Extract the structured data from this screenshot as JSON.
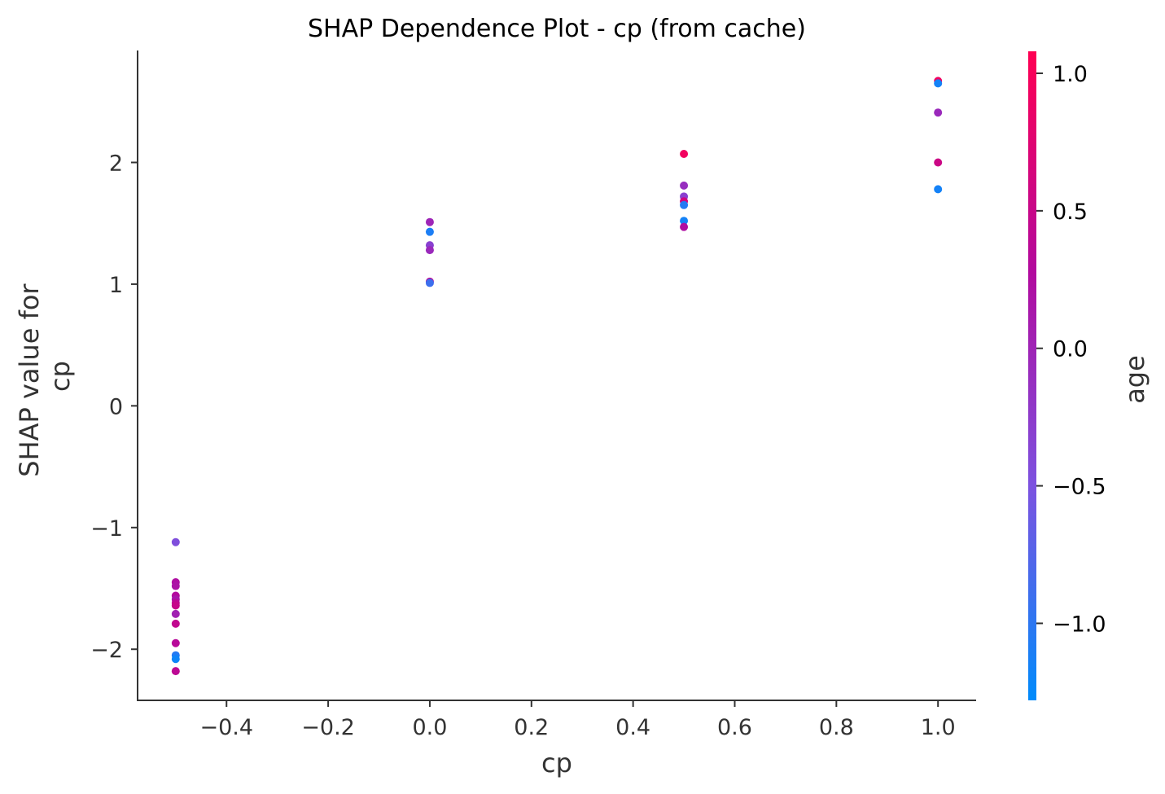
{
  "chart_data": {
    "type": "scatter",
    "title": "SHAP Dependence Plot - cp (from cache)",
    "xlabel": "cp",
    "ylabel_lines": [
      "SHAP value for",
      "cp"
    ],
    "xlim": [
      -0.575,
      1.075
    ],
    "ylim": [
      -2.42,
      2.92
    ],
    "x_ticks": [
      -0.4,
      -0.2,
      0.0,
      0.2,
      0.4,
      0.6,
      0.8,
      1.0
    ],
    "x_tick_labels": [
      "−0.4",
      "−0.2",
      "0.0",
      "0.2",
      "0.4",
      "0.6",
      "0.8",
      "1.0"
    ],
    "y_ticks": [
      -2,
      -1,
      0,
      1,
      2
    ],
    "y_tick_labels": [
      "−2",
      "−1",
      "0",
      "1",
      "2"
    ],
    "colorbar": {
      "label": "age",
      "range": [
        -1.28,
        1.08
      ],
      "ticks": [
        -1.0,
        -0.5,
        0.0,
        0.5,
        1.0
      ],
      "tick_labels": [
        "−1.0",
        "−0.5",
        "0.0",
        "0.5",
        "1.0"
      ],
      "colors": [
        "#008bfb",
        "#7c52e0",
        "#b20a9e",
        "#ff0052"
      ]
    },
    "points": [
      {
        "x": -0.5,
        "y": -1.12,
        "c": -0.45
      },
      {
        "x": -0.5,
        "y": -1.45,
        "c": 0.25
      },
      {
        "x": -0.5,
        "y": -1.48,
        "c": 0.2
      },
      {
        "x": -0.5,
        "y": -1.56,
        "c": 0.3
      },
      {
        "x": -0.5,
        "y": -1.59,
        "c": 0.15
      },
      {
        "x": -0.5,
        "y": -1.62,
        "c": 0.4
      },
      {
        "x": -0.5,
        "y": -1.64,
        "c": 0.5
      },
      {
        "x": -0.5,
        "y": -1.71,
        "c": 0.05
      },
      {
        "x": -0.5,
        "y": -1.79,
        "c": 0.45
      },
      {
        "x": -0.5,
        "y": -1.95,
        "c": 0.35
      },
      {
        "x": -0.5,
        "y": -2.05,
        "c": -1.05
      },
      {
        "x": -0.5,
        "y": -2.08,
        "c": -1.2
      },
      {
        "x": -0.5,
        "y": -2.18,
        "c": 0.4
      },
      {
        "x": 0.0,
        "y": 1.51,
        "c": 0.0
      },
      {
        "x": 0.0,
        "y": 1.43,
        "c": -1.1
      },
      {
        "x": 0.0,
        "y": 1.32,
        "c": -0.3
      },
      {
        "x": 0.0,
        "y": 1.28,
        "c": -0.05
      },
      {
        "x": 0.0,
        "y": 1.02,
        "c": 0.3
      },
      {
        "x": 0.0,
        "y": 1.01,
        "c": -0.9
      },
      {
        "x": 0.5,
        "y": 2.07,
        "c": 0.95
      },
      {
        "x": 0.5,
        "y": 1.81,
        "c": -0.1
      },
      {
        "x": 0.5,
        "y": 1.72,
        "c": -0.3
      },
      {
        "x": 0.5,
        "y": 1.68,
        "c": 0.6
      },
      {
        "x": 0.5,
        "y": 1.65,
        "c": -1.05
      },
      {
        "x": 0.5,
        "y": 1.52,
        "c": -1.15
      },
      {
        "x": 0.5,
        "y": 1.47,
        "c": 0.25
      },
      {
        "x": 1.0,
        "y": 2.67,
        "c": 0.95
      },
      {
        "x": 1.0,
        "y": 2.65,
        "c": -1.15
      },
      {
        "x": 1.0,
        "y": 2.41,
        "c": -0.05
      },
      {
        "x": 1.0,
        "y": 2.0,
        "c": 0.55
      },
      {
        "x": 1.0,
        "y": 1.78,
        "c": -1.15
      }
    ]
  }
}
